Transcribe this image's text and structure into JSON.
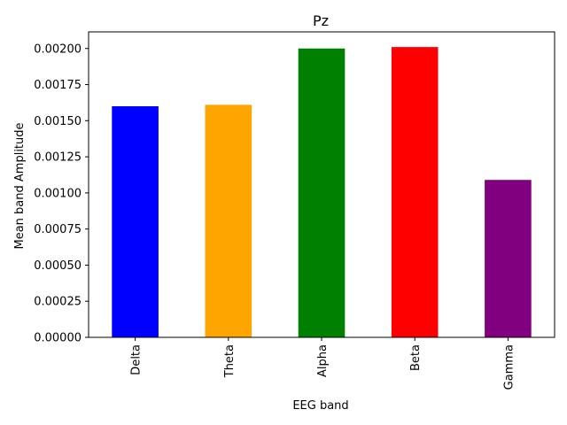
{
  "chart_data": {
    "type": "bar",
    "title": "Pz",
    "xlabel": "EEG band",
    "ylabel": "Mean band Amplitude",
    "categories": [
      "Delta",
      "Theta",
      "Alpha",
      "Beta",
      "Gamma"
    ],
    "values": [
      0.0016,
      0.00161,
      0.002,
      0.00201,
      0.00109
    ],
    "colors": [
      "#0000ff",
      "#ffa500",
      "#008000",
      "#ff0000",
      "#800080"
    ],
    "ylim": [
      0,
      0.002115
    ],
    "yticks": [
      0,
      0.00025,
      0.0005,
      0.00075,
      0.001,
      0.00125,
      0.0015,
      0.00175,
      0.002
    ],
    "ytick_labels": [
      "0.00000",
      "0.00025",
      "0.00050",
      "0.00075",
      "0.00100",
      "0.00125",
      "0.00150",
      "0.00175",
      "0.00200"
    ],
    "grid": false,
    "legend": "none"
  }
}
